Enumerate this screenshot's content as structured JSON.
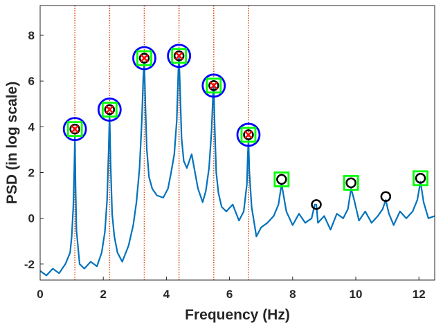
{
  "chart_data": {
    "type": "line",
    "title": "",
    "xlabel": "Frequency (Hz)",
    "ylabel": "PSD (in log scale)",
    "xlim": [
      0,
      12.5
    ],
    "ylim": [
      -2.7,
      9.3
    ],
    "xticks": [
      0,
      2,
      4,
      6,
      8,
      10,
      12
    ],
    "yticks": [
      -2,
      0,
      2,
      4,
      6,
      8
    ],
    "grid": false,
    "colors": {
      "series": "#0072BD",
      "vertical_lines": "#D95319",
      "blue_circle": "#0000FF",
      "green_square": "#00FF00",
      "black_circle": "#000000",
      "red_cross": "#FF0000"
    },
    "vertical_lines_x": [
      1.1,
      2.2,
      3.3,
      4.4,
      5.5,
      6.6
    ],
    "peaks": [
      {
        "x": 1.1,
        "y": 3.9,
        "blue_circle": true,
        "green_square": true,
        "black_circle": true,
        "red_cross": true
      },
      {
        "x": 2.2,
        "y": 4.75,
        "blue_circle": true,
        "green_square": true,
        "black_circle": true,
        "red_cross": true
      },
      {
        "x": 3.3,
        "y": 7.0,
        "blue_circle": true,
        "green_square": true,
        "black_circle": true,
        "red_cross": true
      },
      {
        "x": 4.4,
        "y": 7.1,
        "blue_circle": true,
        "green_square": true,
        "black_circle": true,
        "red_cross": true
      },
      {
        "x": 5.5,
        "y": 5.8,
        "blue_circle": true,
        "green_square": true,
        "black_circle": true,
        "red_cross": true
      },
      {
        "x": 6.6,
        "y": 3.65,
        "blue_circle": true,
        "green_square": true,
        "black_circle": true,
        "red_cross": true
      },
      {
        "x": 7.65,
        "y": 1.7,
        "blue_circle": false,
        "green_square": true,
        "black_circle": true,
        "red_cross": false
      },
      {
        "x": 8.75,
        "y": 0.6,
        "blue_circle": false,
        "green_square": false,
        "black_circle": true,
        "red_cross": false
      },
      {
        "x": 9.85,
        "y": 1.55,
        "blue_circle": false,
        "green_square": true,
        "black_circle": true,
        "red_cross": false
      },
      {
        "x": 10.95,
        "y": 0.95,
        "blue_circle": false,
        "green_square": false,
        "black_circle": true,
        "red_cross": false
      },
      {
        "x": 12.05,
        "y": 1.75,
        "blue_circle": false,
        "green_square": true,
        "black_circle": true,
        "red_cross": false
      }
    ],
    "series": [
      {
        "x": [
          0.0,
          0.2,
          0.4,
          0.6,
          0.8,
          0.95,
          1.0,
          1.05,
          1.08,
          1.1,
          1.12,
          1.15,
          1.25,
          1.4,
          1.6,
          1.8,
          1.95,
          2.05,
          2.12,
          2.17,
          2.2,
          2.23,
          2.28,
          2.35,
          2.45,
          2.6,
          2.8,
          2.95,
          3.05,
          3.15,
          3.22,
          3.27,
          3.3,
          3.33,
          3.38,
          3.45,
          3.55,
          3.7,
          3.9,
          4.05,
          4.15,
          4.25,
          4.33,
          4.38,
          4.4,
          4.43,
          4.48,
          4.55,
          4.65,
          4.8,
          5.0,
          5.15,
          5.25,
          5.35,
          5.43,
          5.48,
          5.5,
          5.53,
          5.58,
          5.65,
          5.75,
          5.9,
          6.1,
          6.3,
          6.45,
          6.55,
          6.58,
          6.6,
          6.63,
          6.7,
          6.85,
          7.0,
          7.2,
          7.4,
          7.55,
          7.65,
          7.8,
          8.0,
          8.2,
          8.4,
          8.6,
          8.7,
          8.75,
          8.8,
          9.0,
          9.2,
          9.4,
          9.6,
          9.75,
          9.85,
          9.95,
          10.1,
          10.3,
          10.5,
          10.7,
          10.85,
          10.95,
          11.05,
          11.2,
          11.4,
          11.6,
          11.8,
          11.95,
          12.05,
          12.15,
          12.3,
          12.5
        ],
        "y": [
          -2.3,
          -2.5,
          -2.2,
          -2.4,
          -2.0,
          -1.5,
          -0.8,
          0.5,
          2.0,
          3.6,
          1.5,
          -0.5,
          -2.0,
          -2.2,
          -1.9,
          -2.1,
          -1.5,
          -0.6,
          0.8,
          3.0,
          4.55,
          2.5,
          0.2,
          -0.8,
          -1.5,
          -1.9,
          -1.2,
          -0.3,
          0.7,
          2.2,
          4.2,
          6.2,
          6.8,
          5.2,
          3.0,
          1.8,
          1.3,
          1.0,
          0.9,
          1.3,
          2.0,
          2.8,
          4.3,
          6.5,
          7.0,
          5.8,
          3.5,
          2.5,
          2.2,
          2.8,
          1.3,
          0.7,
          1.2,
          2.2,
          3.8,
          5.5,
          5.75,
          4.0,
          2.0,
          1.1,
          0.5,
          0.3,
          0.6,
          -0.1,
          0.3,
          1.5,
          2.8,
          3.4,
          2.0,
          0.5,
          -0.8,
          -0.4,
          -0.2,
          0.1,
          0.6,
          1.5,
          0.3,
          -0.3,
          0.2,
          -0.2,
          0.0,
          0.6,
          0.6,
          -0.2,
          0.1,
          -0.5,
          0.2,
          0.0,
          0.4,
          1.3,
          0.8,
          -0.1,
          0.3,
          -0.2,
          0.1,
          0.4,
          0.8,
          0.2,
          -0.3,
          0.3,
          0.0,
          0.3,
          0.8,
          1.6,
          0.7,
          0.0,
          0.1
        ]
      }
    ]
  }
}
